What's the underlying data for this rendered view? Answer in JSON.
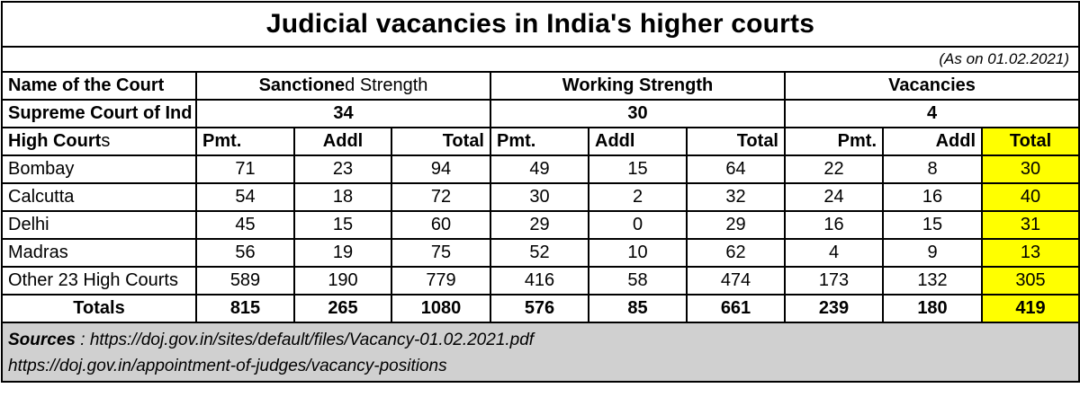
{
  "title": "Judicial vacancies in India's higher courts",
  "as_on": "(As on 01.02.2021)",
  "header": {
    "court_label": "Name of the Court",
    "sanctioned_bold": "Sanctione",
    "sanctioned_rest": "d Strength",
    "working": "Working Strength",
    "vacancies": "Vacancies"
  },
  "supreme": {
    "label": "Supreme Court of Ind",
    "sanctioned": "34",
    "working": "30",
    "vacancies": "4"
  },
  "subheader": {
    "label_bold": "High Court",
    "label_rest": "s",
    "cols": [
      "Pmt.",
      "Addl",
      "Total",
      "Pmt.",
      "Addl",
      "Total",
      "Pmt.",
      "Addl",
      "Total"
    ]
  },
  "rows": [
    {
      "court": "Bombay",
      "values": [
        "71",
        "23",
        "94",
        "49",
        "15",
        "64",
        "22",
        "8",
        "30"
      ]
    },
    {
      "court": "Calcutta",
      "values": [
        "54",
        "18",
        "72",
        "30",
        "2",
        "32",
        "24",
        "16",
        "40"
      ]
    },
    {
      "court": "Delhi",
      "values": [
        "45",
        "15",
        "60",
        "29",
        "0",
        "29",
        "16",
        "15",
        "31"
      ]
    },
    {
      "court": "Madras",
      "values": [
        "56",
        "19",
        "75",
        "52",
        "10",
        "62",
        "4",
        "9",
        "13"
      ]
    },
    {
      "court": "Other  23 High Courts",
      "values": [
        "589",
        "190",
        "779",
        "416",
        "58",
        "474",
        "173",
        "132",
        "305"
      ]
    }
  ],
  "totals": {
    "label": "Totals",
    "values": [
      "815",
      "265",
      "1080",
      "576",
      "85",
      "661",
      "239",
      "180",
      "419"
    ]
  },
  "sources": {
    "label": "Sources",
    "sep": " : ",
    "url1": "https://doj.gov.in/sites/default/files/Vacancy-01.02.2021.pdf",
    "url2": "https://doj.gov.in/appointment-of-judges/vacancy-positions"
  },
  "colors": {
    "highlight": "#ffff00",
    "sources_bg": "#d0d0d0",
    "border": "#000000"
  }
}
